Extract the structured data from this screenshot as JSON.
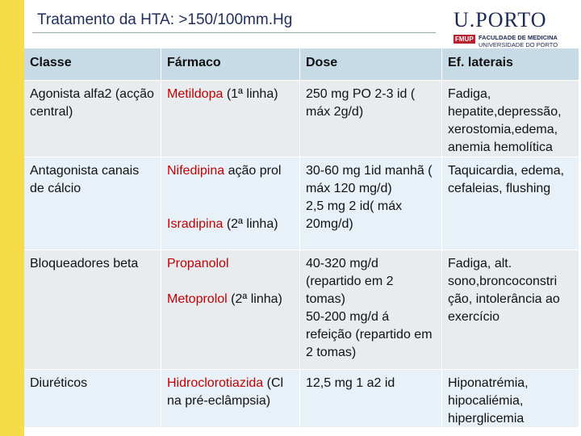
{
  "title": "Tratamento da HTA: >150/100mm.Hg",
  "logo": {
    "name": "U.PORTO",
    "unit": "FMUP",
    "faculty": "FACULDADE DE MEDICINA",
    "university": "UNIVERSIDADE DO PORTO"
  },
  "table": {
    "header": [
      "Classe",
      "Fármaco",
      "Dose",
      "Ef. laterais"
    ],
    "rows": [
      {
        "class": "Agonista alfa2 (acção central)",
        "drugs": [
          {
            "name": "Metildopa",
            "note": "(1ª linha)"
          }
        ],
        "doses": [
          "250 mg PO 2-3 id ( máx 2g/d)"
        ],
        "effects": "Fadiga, hepatite,depressão, xerostomia,edema, anemia hemolítica"
      },
      {
        "class": "Antagonista canais de cálcio",
        "drugs": [
          {
            "name": "Nifedipina",
            "note": "ação prol"
          },
          {
            "name": "Isradipina",
            "note": "(2ª linha)"
          }
        ],
        "doses": [
          "30-60 mg 1id manhã ( máx 120 mg/d)",
          "2,5 mg 2 id( máx 20mg/d)"
        ],
        "effects": "Taquicardia, edema, cefaleias, flushing"
      },
      {
        "class": "Bloqueadores beta",
        "drugs": [
          {
            "name": "Propanolol",
            "note": ""
          },
          {
            "name": "Metoprolol",
            "note": "(2ª linha)"
          }
        ],
        "doses": [
          "40-320 mg/d (repartido em 2 tomas)",
          "50-200 mg/d á refeição (repartido em 2 tomas)"
        ],
        "effects": "Fadiga, alt. sono,broncoconstri ção, intolerância ao exercício"
      },
      {
        "class": "Diuréticos",
        "drugs": [
          {
            "name": "Hidroclorotiazida",
            "note": "(Cl na pré-eclâmpsia)"
          }
        ],
        "doses": [
          "12,5 mg 1 a2 id"
        ],
        "effects": "Hiponatrémia, hipocaliémia, hiperglicemia"
      }
    ]
  }
}
